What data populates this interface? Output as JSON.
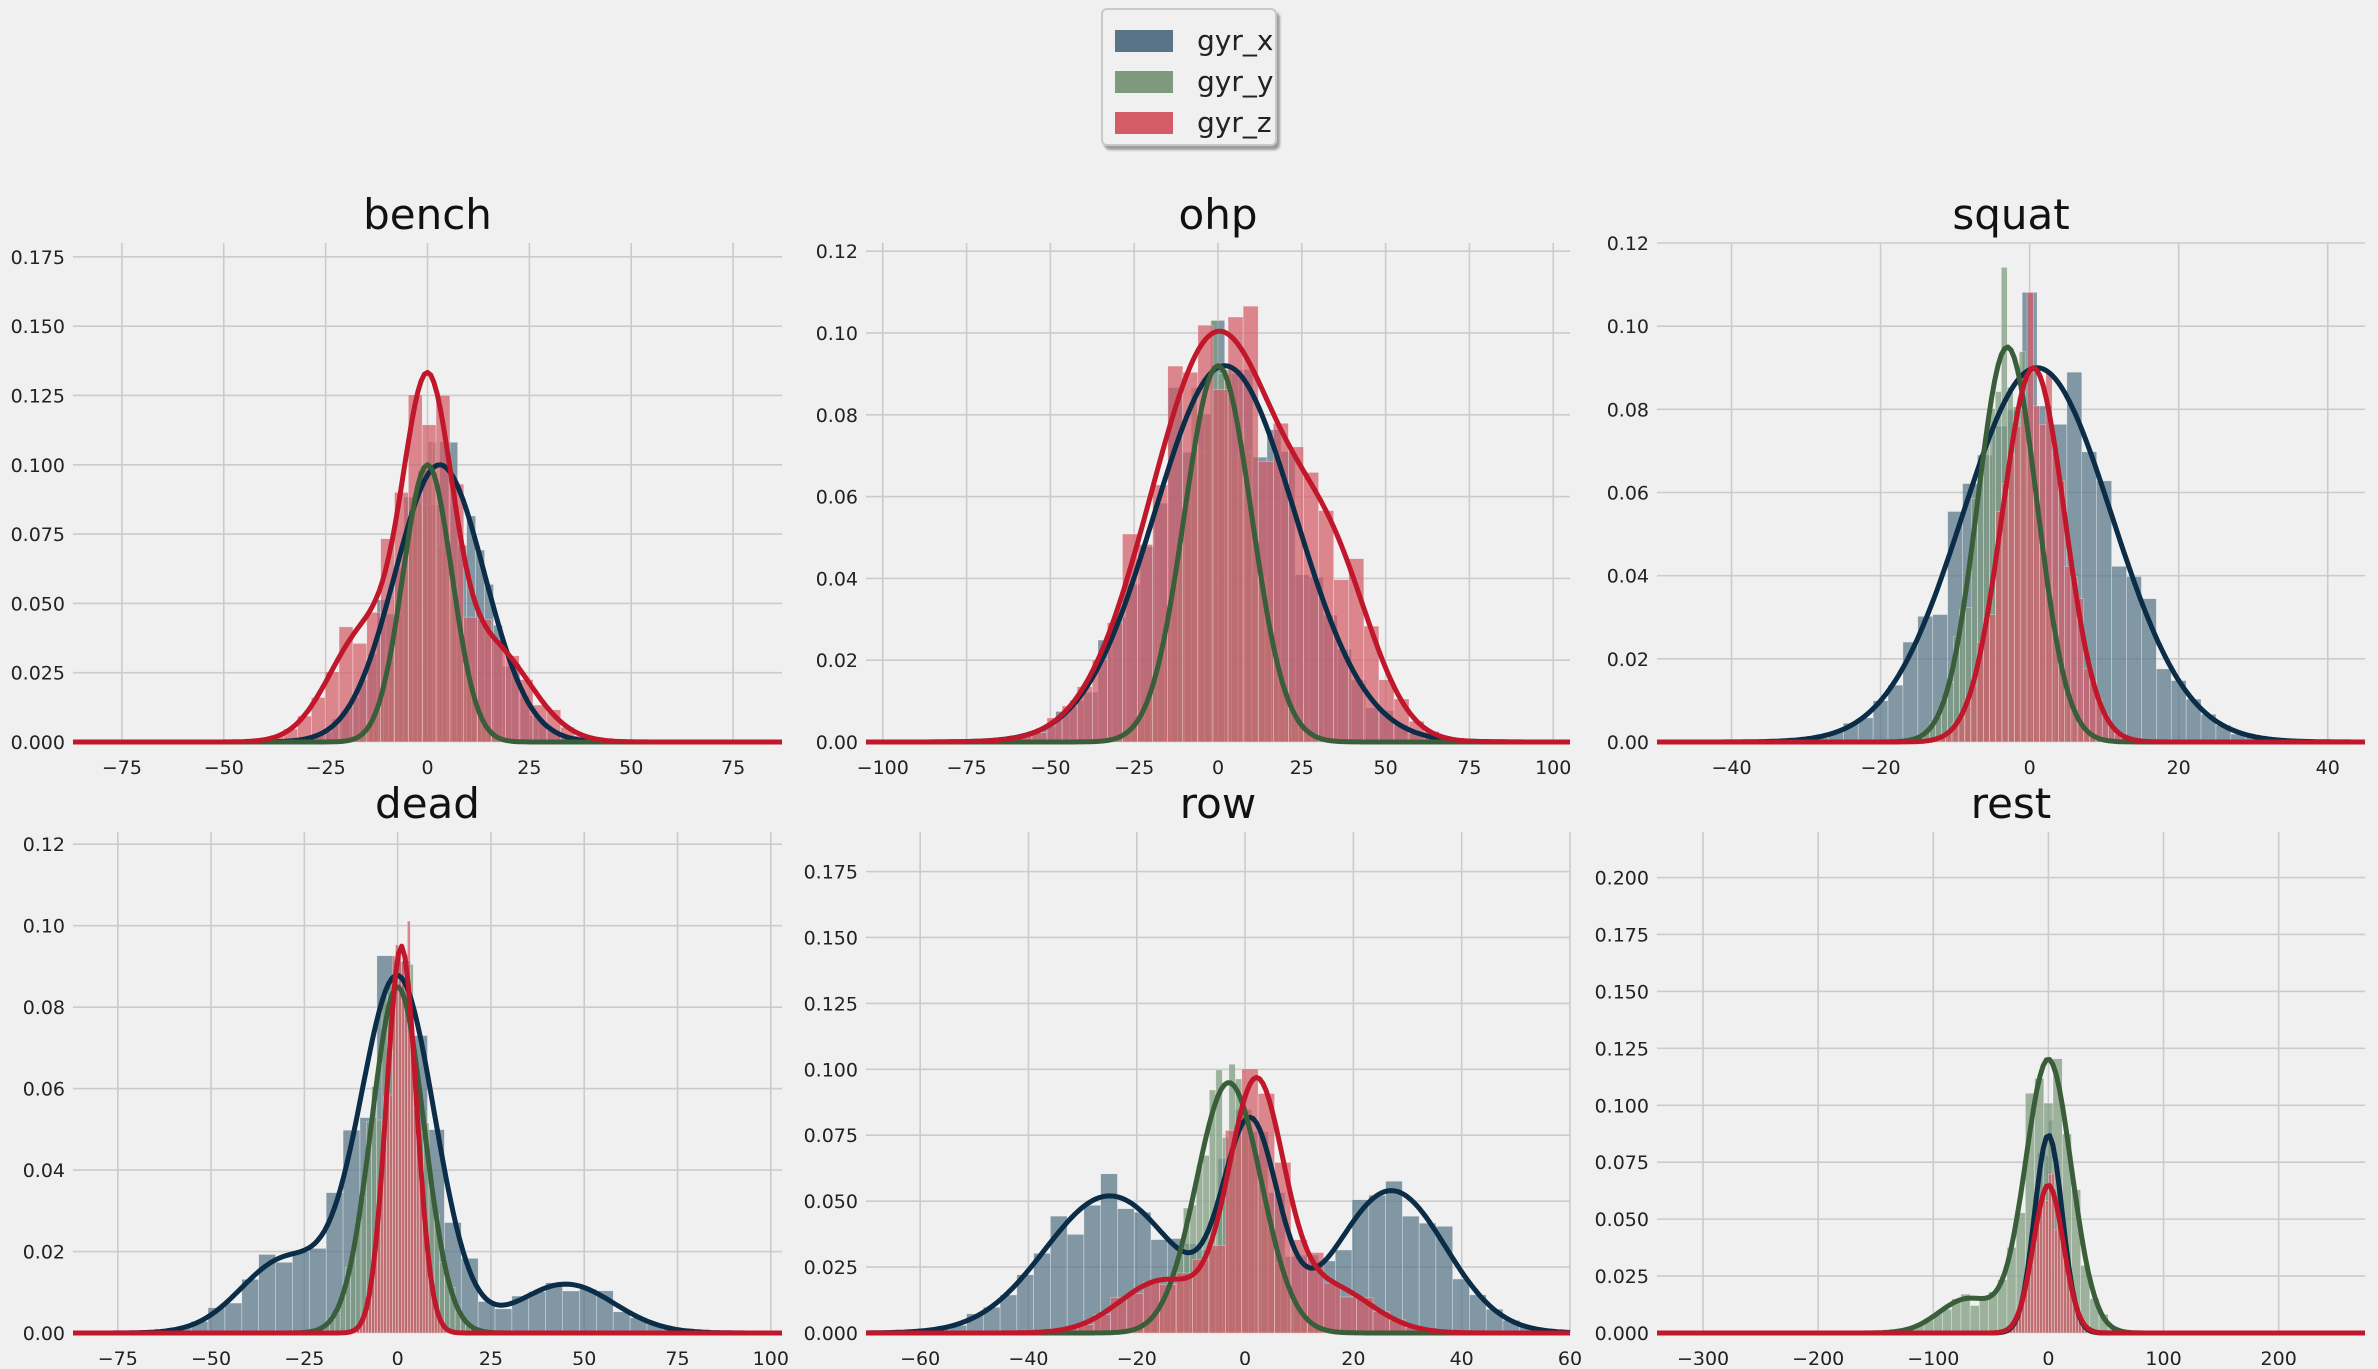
{
  "colors": {
    "gyr_x_bar": "#587486",
    "gyr_y_bar": "#7d9a7d",
    "gyr_z_bar": "#d35c66",
    "gyr_x_line": "#0b2d48",
    "gyr_y_line": "#3a5e3a",
    "gyr_z_line": "#c0172a",
    "grid": "#cbcbcb"
  },
  "legend": {
    "placement": "top-center",
    "items": [
      {
        "label": "gyr_x",
        "color": "#587486"
      },
      {
        "label": "gyr_y",
        "color": "#7d9a7d"
      },
      {
        "label": "gyr_z",
        "color": "#d35c66"
      }
    ]
  },
  "chart_data": [
    {
      "type": "histogram+kde",
      "title": "bench",
      "xlim": [
        -87,
        87
      ],
      "ylim": [
        0,
        0.18
      ],
      "xticks": [
        -75,
        -50,
        -25,
        0,
        25,
        50,
        75
      ],
      "yticks": [
        0.0,
        0.025,
        0.05,
        0.075,
        0.1,
        0.125,
        0.15,
        0.175
      ],
      "ytick_labels": [
        "0.000",
        "0.025",
        "0.050",
        "0.075",
        "0.100",
        "0.125",
        "0.150",
        "0.175"
      ],
      "xtick_labels": [
        "−75",
        "−50",
        "−25",
        "0",
        "25",
        "50",
        "75"
      ],
      "series": [
        {
          "name": "gyr_x",
          "mean": 3,
          "sd": 11,
          "peak": 0.1
        },
        {
          "name": "gyr_y",
          "mean": 0,
          "sd": 6,
          "peak": 0.1
        },
        {
          "name": "gyr_z",
          "mean": 0,
          "sd": 6,
          "peak": 0.112,
          "shoulder": {
            "mean": -15,
            "sd": 9,
            "height": 0.04
          },
          "shoulder2": {
            "mean": 15,
            "sd": 10,
            "height": 0.035
          }
        }
      ]
    },
    {
      "type": "histogram+kde",
      "title": "ohp",
      "xlim": [
        -105,
        105
      ],
      "ylim": [
        0,
        0.122
      ],
      "xticks": [
        -100,
        -75,
        -50,
        -25,
        0,
        25,
        50,
        75,
        100
      ],
      "yticks": [
        0.0,
        0.02,
        0.04,
        0.06,
        0.08,
        0.1,
        0.12
      ],
      "ytick_labels": [
        "0.00",
        "0.02",
        "0.04",
        "0.06",
        "0.08",
        "0.10",
        "0.12"
      ],
      "xtick_labels": [
        "−100",
        "−75",
        "−50",
        "−25",
        "0",
        "25",
        "50",
        "75",
        "100"
      ],
      "series": [
        {
          "name": "gyr_x",
          "mean": 2,
          "sd": 21,
          "peak": 0.092
        },
        {
          "name": "gyr_y",
          "mean": 0,
          "sd": 10,
          "peak": 0.092
        },
        {
          "name": "gyr_z",
          "mean": 0,
          "sd": 20,
          "peak": 0.1,
          "shoulder": {
            "mean": 35,
            "sd": 12,
            "height": 0.03
          }
        }
      ]
    },
    {
      "type": "histogram+kde",
      "title": "squat",
      "xlim": [
        -50,
        45
      ],
      "ylim": [
        0,
        0.12
      ],
      "xticks": [
        -40,
        -20,
        0,
        20,
        40
      ],
      "yticks": [
        0.0,
        0.02,
        0.04,
        0.06,
        0.08,
        0.1,
        0.12
      ],
      "ytick_labels": [
        "0.00",
        "0.02",
        "0.04",
        "0.06",
        "0.08",
        "0.10",
        "0.12"
      ],
      "xtick_labels": [
        "−40",
        "−20",
        "0",
        "20",
        "40"
      ],
      "series": [
        {
          "name": "gyr_x",
          "mean": 1,
          "sd": 10,
          "peak": 0.09
        },
        {
          "name": "gyr_y",
          "mean": -3,
          "sd": 4,
          "peak": 0.095
        },
        {
          "name": "gyr_z",
          "mean": 0.5,
          "sd": 4.2,
          "peak": 0.09
        }
      ]
    },
    {
      "type": "histogram+kde",
      "title": "dead",
      "xlim": [
        -87,
        103
      ],
      "ylim": [
        0,
        0.123
      ],
      "xticks": [
        -75,
        -50,
        -25,
        0,
        25,
        50,
        75,
        100
      ],
      "yticks": [
        0.0,
        0.02,
        0.04,
        0.06,
        0.08,
        0.1,
        0.12
      ],
      "ytick_labels": [
        "0.00",
        "0.02",
        "0.04",
        "0.06",
        "0.08",
        "0.10",
        "0.12"
      ],
      "xtick_labels": [
        "−75",
        "−50",
        "−25",
        "0",
        "25",
        "50",
        "75",
        "100"
      ],
      "series": [
        {
          "name": "gyr_x",
          "mean": 0,
          "sd": 10,
          "peak": 0.087,
          "shoulder": {
            "mean": -30,
            "sd": 12,
            "height": 0.018
          },
          "shoulder2": {
            "mean": 45,
            "sd": 13,
            "height": 0.012
          }
        },
        {
          "name": "gyr_y",
          "mean": 0,
          "sd": 7,
          "peak": 0.085
        },
        {
          "name": "gyr_z",
          "mean": 1,
          "sd": 4,
          "peak": 0.095
        }
      ]
    },
    {
      "type": "histogram+kde",
      "title": "row",
      "xlim": [
        -70,
        60
      ],
      "ylim": [
        0,
        0.19
      ],
      "xticks": [
        -60,
        -40,
        -20,
        0,
        20,
        40,
        60
      ],
      "yticks": [
        0.0,
        0.025,
        0.05,
        0.075,
        0.1,
        0.125,
        0.15,
        0.175
      ],
      "ytick_labels": [
        "0.000",
        "0.025",
        "0.050",
        "0.075",
        "0.100",
        "0.125",
        "0.150",
        "0.175"
      ],
      "xtick_labels": [
        "−60",
        "−40",
        "−20",
        "0",
        "20",
        "40",
        "60"
      ],
      "series": [
        {
          "name": "gyr_x",
          "mean": 1,
          "sd": 5,
          "peak": 0.075,
          "shoulder": {
            "mean": -25,
            "sd": 12,
            "height": 0.052
          },
          "shoulder2": {
            "mean": 27,
            "sd": 10,
            "height": 0.054
          }
        },
        {
          "name": "gyr_y",
          "mean": -3,
          "sd": 6,
          "peak": 0.095
        },
        {
          "name": "gyr_z",
          "mean": 2,
          "sd": 5,
          "peak": 0.09,
          "shoulder": {
            "mean": -15,
            "sd": 8,
            "height": 0.02
          },
          "shoulder2": {
            "mean": 15,
            "sd": 8,
            "height": 0.018
          }
        }
      ]
    },
    {
      "type": "histogram+kde",
      "title": "rest",
      "xlim": [
        -340,
        275
      ],
      "ylim": [
        0,
        0.22
      ],
      "xticks": [
        -300,
        -200,
        -100,
        0,
        100,
        200
      ],
      "yticks": [
        0.0,
        0.025,
        0.05,
        0.075,
        0.1,
        0.125,
        0.15,
        0.175,
        0.2
      ],
      "ytick_labels": [
        "0.000",
        "0.025",
        "0.050",
        "0.075",
        "0.100",
        "0.125",
        "0.150",
        "0.175",
        "0.200"
      ],
      "xtick_labels": [
        "−300",
        "−200",
        "−100",
        "0",
        "100",
        "200"
      ],
      "series": [
        {
          "name": "gyr_x",
          "mean": 0,
          "sd": 12,
          "peak": 0.087
        },
        {
          "name": "gyr_y",
          "mean": 0,
          "sd": 20,
          "peak": 0.12,
          "shoulder": {
            "mean": -70,
            "sd": 25,
            "height": 0.015
          }
        },
        {
          "name": "gyr_z",
          "mean": 0,
          "sd": 13,
          "peak": 0.065
        }
      ]
    }
  ]
}
